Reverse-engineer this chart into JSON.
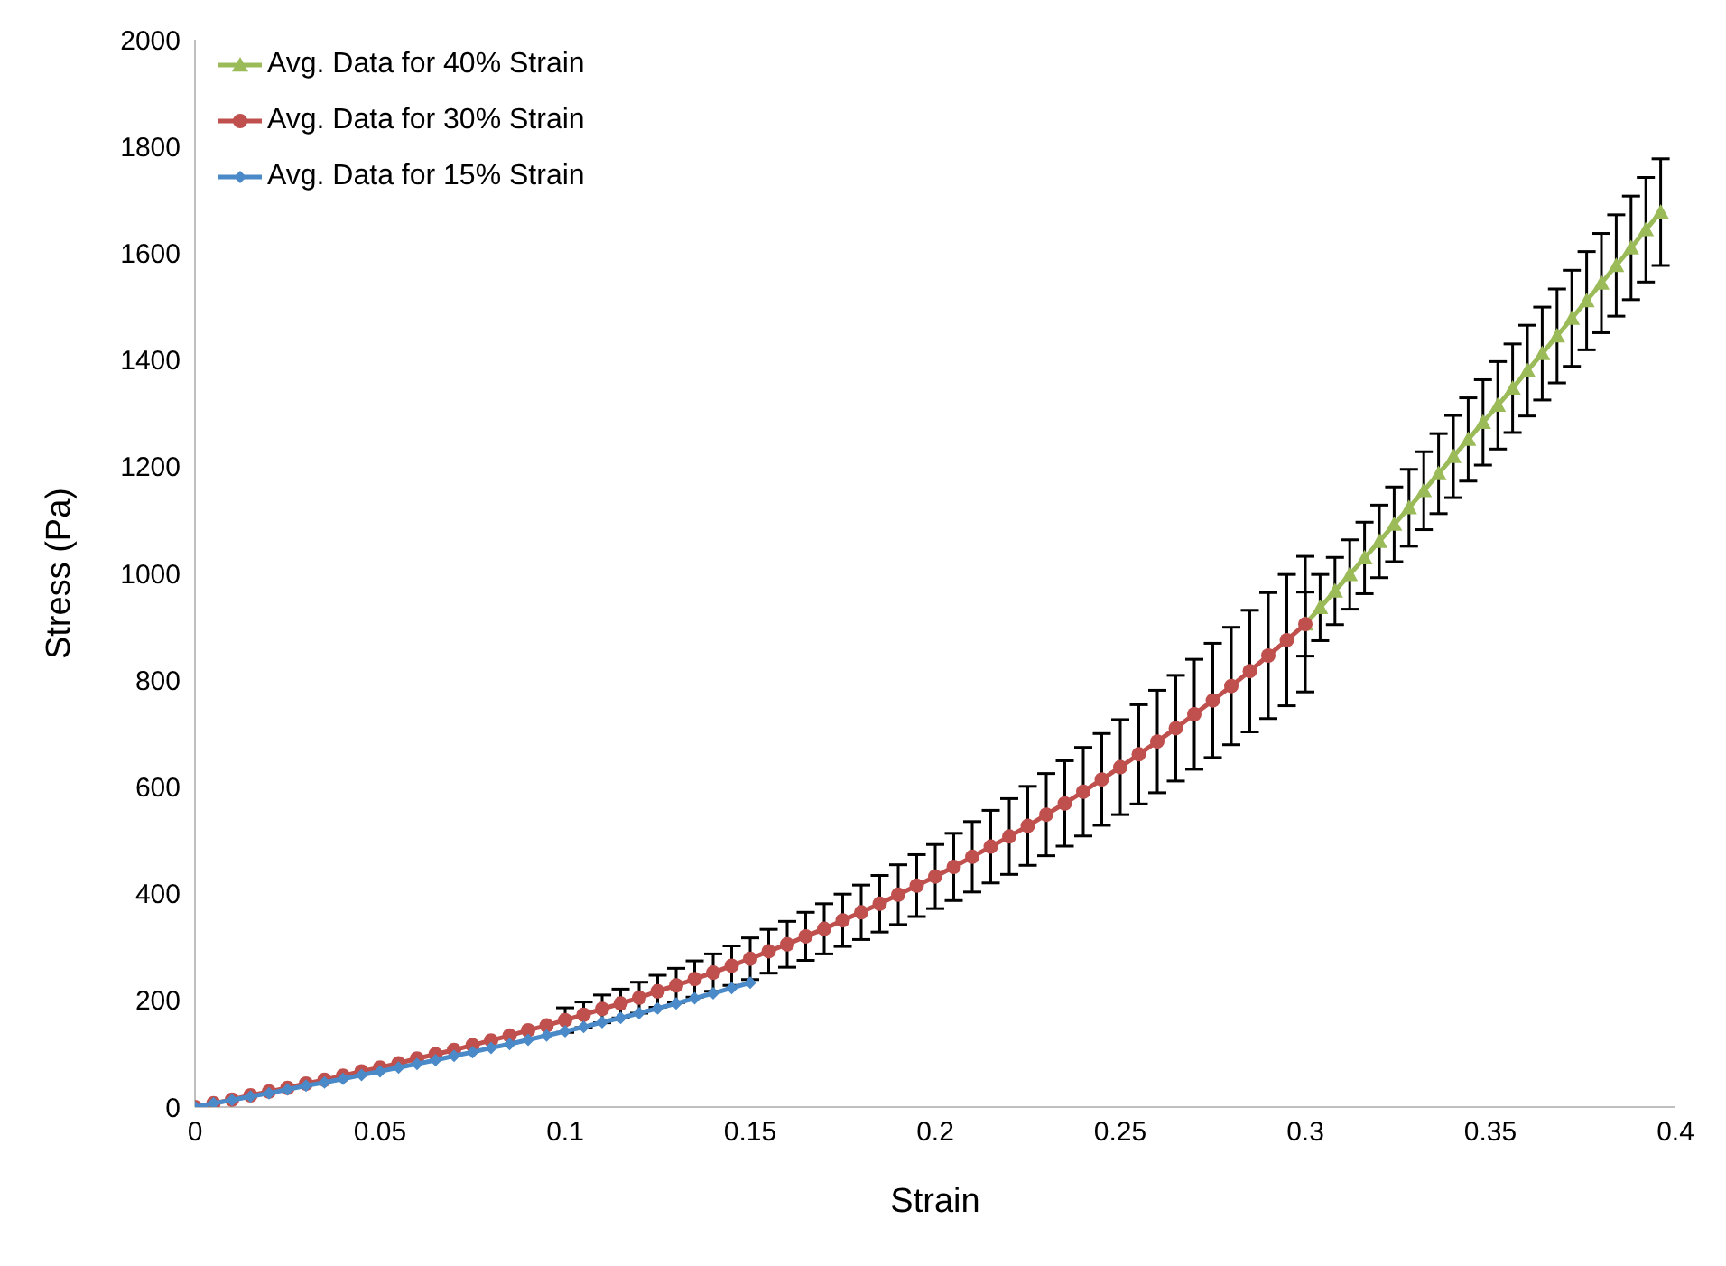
{
  "chart_data": {
    "type": "line",
    "xlabel": "Strain",
    "ylabel": "Stress (Pa)",
    "xlim": [
      0,
      0.4
    ],
    "xticks": [
      0,
      0.05,
      0.1,
      0.15,
      0.2,
      0.25,
      0.3,
      0.35,
      0.4
    ],
    "ylim": [
      0,
      2000
    ],
    "yticks": [
      0,
      200,
      400,
      600,
      800,
      1000,
      1200,
      1400,
      1600,
      1800,
      2000
    ],
    "grid": false,
    "legend": "top left",
    "line_style": "solid",
    "series": [
      {
        "name": "Avg. Data for 40% Strain",
        "color": "#9bbb59",
        "marker": "triangle",
        "x": [
          0.3,
          0.304,
          0.308,
          0.312,
          0.316,
          0.32,
          0.324,
          0.328,
          0.332,
          0.336,
          0.34,
          0.344,
          0.348,
          0.352,
          0.356,
          0.36,
          0.364,
          0.368,
          0.372,
          0.376,
          0.38,
          0.384,
          0.388,
          0.392,
          0.396
        ],
        "values": [
          905,
          936,
          967,
          998,
          1029,
          1060,
          1092,
          1123,
          1155,
          1187,
          1219,
          1251,
          1283,
          1315,
          1347,
          1380,
          1412,
          1445,
          1478,
          1511,
          1544,
          1577,
          1610,
          1644,
          1677
        ],
        "errors": [
          60,
          62,
          63,
          65,
          67,
          68,
          70,
          72,
          73,
          75,
          77,
          78,
          80,
          82,
          83,
          85,
          87,
          88,
          90,
          92,
          93,
          95,
          97,
          98,
          100
        ]
      },
      {
        "name": "Avg. Data for 30% Strain",
        "color": "#c0504d",
        "marker": "circle",
        "x": [
          0,
          0.005,
          0.01,
          0.015,
          0.02,
          0.025,
          0.03,
          0.035,
          0.04,
          0.045,
          0.05,
          0.055,
          0.06,
          0.065,
          0.07,
          0.075,
          0.08,
          0.085,
          0.09,
          0.095,
          0.1,
          0.105,
          0.11,
          0.115,
          0.12,
          0.125,
          0.13,
          0.135,
          0.14,
          0.145,
          0.15,
          0.155,
          0.16,
          0.165,
          0.17,
          0.175,
          0.18,
          0.185,
          0.19,
          0.195,
          0.2,
          0.205,
          0.21,
          0.215,
          0.22,
          0.225,
          0.23,
          0.235,
          0.24,
          0.245,
          0.25,
          0.255,
          0.26,
          0.265,
          0.27,
          0.275,
          0.28,
          0.285,
          0.29,
          0.295,
          0.3
        ],
        "values": [
          0,
          7,
          14,
          22,
          29,
          36,
          44,
          51,
          59,
          67,
          74,
          82,
          91,
          99,
          107,
          116,
          125,
          134,
          144,
          153,
          163,
          173,
          184,
          194,
          205,
          217,
          228,
          240,
          252,
          265,
          278,
          292,
          305,
          320,
          334,
          350,
          365,
          381,
          398,
          415,
          432,
          450,
          469,
          488,
          507,
          527,
          548,
          569,
          591,
          614,
          637,
          661,
          685,
          710,
          736,
          762,
          789,
          817,
          846,
          875,
          905
        ],
        "errors": [
          null,
          null,
          null,
          null,
          null,
          null,
          null,
          null,
          null,
          null,
          null,
          null,
          null,
          null,
          null,
          null,
          null,
          null,
          null,
          null,
          23,
          24,
          26,
          27,
          29,
          30,
          32,
          34,
          35,
          37,
          39,
          41,
          43,
          45,
          47,
          49,
          51,
          53,
          56,
          58,
          60,
          63,
          66,
          68,
          71,
          74,
          77,
          80,
          83,
          86,
          89,
          93,
          96,
          99,
          103,
          107,
          110,
          114,
          118,
          123,
          127
        ]
      },
      {
        "name": "Avg. Data for 15% Strain",
        "color": "#4a8ac8",
        "marker": "diamond",
        "x": [
          0,
          0.005,
          0.01,
          0.015,
          0.02,
          0.025,
          0.03,
          0.035,
          0.04,
          0.045,
          0.05,
          0.055,
          0.06,
          0.065,
          0.07,
          0.075,
          0.08,
          0.085,
          0.09,
          0.095,
          0.1,
          0.105,
          0.11,
          0.115,
          0.12,
          0.125,
          0.13,
          0.135,
          0.14,
          0.145,
          0.15
        ],
        "values": [
          0,
          7,
          13,
          20,
          26,
          33,
          40,
          46,
          53,
          60,
          67,
          74,
          81,
          88,
          96,
          103,
          111,
          118,
          126,
          134,
          142,
          150,
          159,
          167,
          176,
          185,
          194,
          204,
          213,
          223,
          233
        ]
      }
    ]
  }
}
